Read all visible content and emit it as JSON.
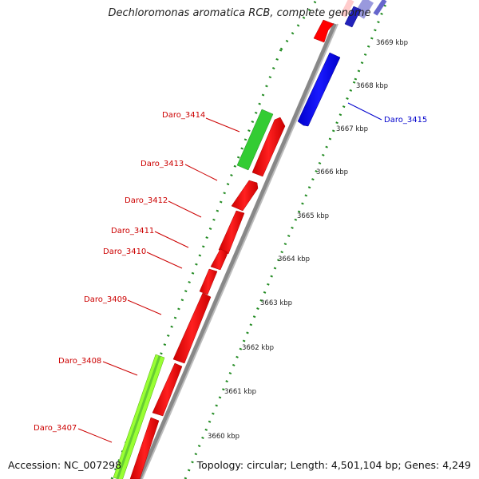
{
  "title": "Dechloromonas aromatica RCB, complete genome",
  "footer": {
    "accession": "Accession: NC_007298",
    "topology": "Topology: circular; Length: 4,501,104 bp; Genes: 4,249"
  },
  "colors": {
    "reverse_strand": "#ff0000",
    "forward_strand": "#0000ff",
    "rna_or_other": "#33cc33",
    "light_green": "#99ff33",
    "backbone": "#888888",
    "tick_marks": "#228b22",
    "label_red": "#cc0000",
    "label_blue": "#0000cc"
  },
  "scale_labels": [
    "3669 kbp",
    "3668 kbp",
    "3667 kbp",
    "3666 kbp",
    "3665 kbp",
    "3664 kbp",
    "3663 kbp",
    "3662 kbp",
    "3661 kbp",
    "3660 kbp"
  ],
  "gene_labels": [
    {
      "name": "Daro_3415",
      "color": "blue"
    },
    {
      "name": "Daro_3414",
      "color": "red"
    },
    {
      "name": "Daro_3413",
      "color": "red"
    },
    {
      "name": "Daro_3412",
      "color": "red"
    },
    {
      "name": "Daro_3411",
      "color": "red"
    },
    {
      "name": "Daro_3410",
      "color": "red"
    },
    {
      "name": "Daro_3409",
      "color": "red"
    },
    {
      "name": "Daro_3408",
      "color": "red"
    },
    {
      "name": "Daro_3407",
      "color": "red"
    }
  ]
}
